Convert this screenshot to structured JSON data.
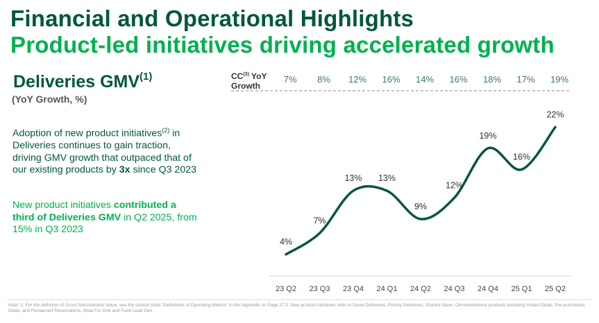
{
  "header": {
    "title": "Financial and Operational Highlights",
    "subtitle": "Product-led initiatives driving accelerated growth"
  },
  "section": {
    "title": "Deliveries GMV",
    "title_sup": "(1)",
    "subtitle": "(YoY Growth, %)"
  },
  "body": {
    "p1_a": "Adoption of new product initiatives",
    "p1_sup": "(2)",
    "p1_b": " in Deliveries continues to gain traction, driving GMV growth that outpaced that of our existing products by ",
    "p1_bold": "3x",
    "p1_c": " since Q3 2023",
    "p2_a": "New product initiatives ",
    "p2_bold": "contributed a third of Deliveries GMV",
    "p2_c": " in Q2 2025, from 15% in Q3 2023"
  },
  "cc_row": {
    "label_a": "CC",
    "label_sup": "(3)",
    "label_b": " YoY",
    "label_c": "Growth"
  },
  "colors": {
    "dark": "#00573a",
    "bright": "#00b14f"
  },
  "chart_data": {
    "type": "line",
    "title": "Deliveries GMV YoY Growth",
    "ylabel": "YoY Growth, %",
    "categories": [
      "23 Q2",
      "23 Q3",
      "23 Q4",
      "24 Q1",
      "24 Q2",
      "24 Q3",
      "24 Q4",
      "25 Q1",
      "25 Q2"
    ],
    "series": [
      {
        "name": "YoY Growth",
        "values": [
          4,
          7,
          13,
          13,
          9,
          12,
          19,
          16,
          22
        ],
        "labels": [
          "4%",
          "7%",
          "13%",
          "13%",
          "9%",
          "12%",
          "19%",
          "16%",
          "22%"
        ]
      },
      {
        "name": "CC YoY Growth",
        "values": [
          7,
          8,
          12,
          16,
          14,
          16,
          18,
          17,
          19
        ],
        "labels": [
          "7%",
          "8%",
          "12%",
          "16%",
          "14%",
          "16%",
          "18%",
          "17%",
          "19%"
        ]
      }
    ],
    "grid": false
  },
  "footnote": "Note: 1. For the definition of Gross Merchandise Value, see the section titled \"Definitions of Operating Metrics\" in the Appendix on Page 27 2. New product initiatives refer to Saver Deliveries, Priority Deliveries, Shared Saver, Omnicommerce products including Instant Deals, Pre-purchased Deals, and Restaurant Reservations, Meal For One and Food Lead Gen."
}
